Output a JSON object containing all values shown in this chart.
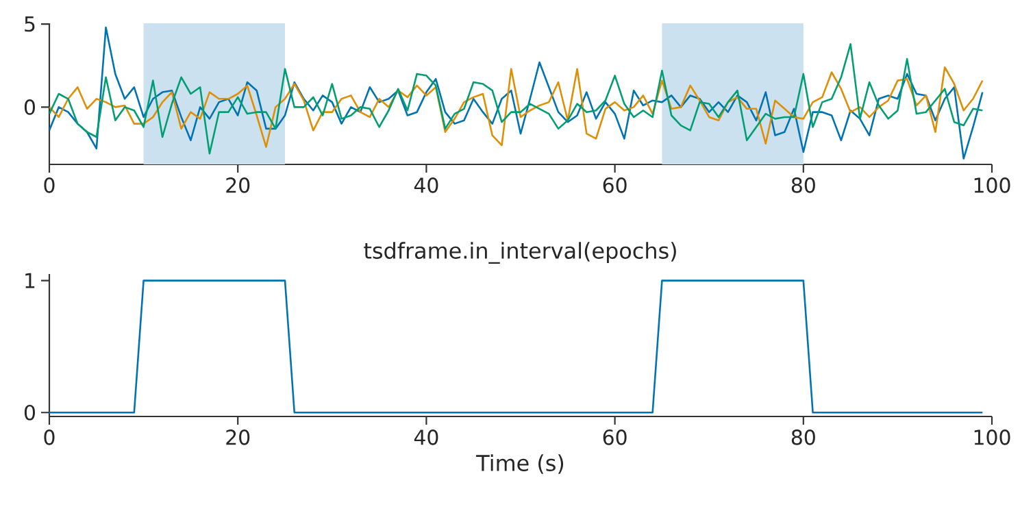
{
  "chart_data": [
    {
      "type": "line",
      "x": [
        0,
        1,
        2,
        3,
        4,
        5,
        6,
        7,
        8,
        9,
        10,
        11,
        12,
        13,
        14,
        15,
        16,
        17,
        18,
        19,
        20,
        21,
        22,
        23,
        24,
        25,
        26,
        27,
        28,
        29,
        30,
        31,
        32,
        33,
        34,
        35,
        36,
        37,
        38,
        39,
        40,
        41,
        42,
        43,
        44,
        45,
        46,
        47,
        48,
        49,
        50,
        51,
        52,
        53,
        54,
        55,
        56,
        57,
        58,
        59,
        60,
        61,
        62,
        63,
        64,
        65,
        66,
        67,
        68,
        69,
        70,
        71,
        72,
        73,
        74,
        75,
        76,
        77,
        78,
        79,
        80,
        81,
        82,
        83,
        84,
        85,
        86,
        87,
        88,
        89,
        90,
        91,
        92,
        93,
        94,
        95,
        96,
        97,
        98,
        99
      ],
      "series": [
        {
          "color": "#0173b2",
          "values": [
            -1.4,
            0,
            -0.3,
            -1,
            -1.5,
            -2.5,
            4.8,
            2,
            0.5,
            1.2,
            -0.6,
            0.5,
            0.9,
            1,
            -0.6,
            -2,
            0,
            -0.7,
            0.3,
            0.5,
            -0.5,
            1.5,
            1,
            -1.3,
            -1.3,
            -0.5,
            1.5,
            0.5,
            -0.2,
            0.7,
            0.3,
            -1,
            0,
            -0.3,
            1.2,
            0.3,
            0.5,
            1,
            -0.5,
            -0.3,
            0.9,
            1.7,
            -0.3,
            -1,
            -0.8,
            0.5,
            -0.3,
            -1,
            0.5,
            1,
            -1.6,
            0.5,
            2.7,
            1.2,
            -0.3,
            -0.9,
            -0.5,
            0.9,
            -0.7,
            0.3,
            -0.4,
            -1.9,
            1,
            0.1,
            0.4,
            0.3,
            0.7,
            0,
            0.7,
            0.5,
            -0.3,
            0.3,
            -0.3,
            0.7,
            0.3,
            -0.8,
            0.9,
            -1.7,
            -1.5,
            -0.1,
            -2.7,
            -0.3,
            -0.3,
            -0.5,
            -2,
            -0.2,
            -0.7,
            -1.7,
            0.5,
            0.7,
            0.5,
            2,
            0.8,
            0.7,
            -0.8,
            0.5,
            1.2,
            -3.1,
            -1.2,
            0.9
          ]
        },
        {
          "color": "#de8f05",
          "values": [
            0,
            -0.6,
            0.5,
            1.2,
            -0.1,
            0.5,
            0.3,
            0,
            0.1,
            -1,
            -1,
            -0.6,
            0.3,
            0.9,
            -1.3,
            -0.3,
            -0.7,
            0.9,
            0.5,
            0.5,
            0.8,
            1.3,
            -0.5,
            -2.4,
            0,
            0.5,
            1.4,
            0.4,
            -1.4,
            -0.3,
            -0.3,
            0.5,
            0.7,
            -0.3,
            -0.6,
            0.5,
            0,
            1,
            0.6,
            1.3,
            0.7,
            1.2,
            -1.5,
            -0.7,
            0.3,
            0.6,
            0.8,
            -1.7,
            -2.3,
            2.3,
            -0.6,
            -0.2,
            0.1,
            0.3,
            1.5,
            -0.8,
            2.3,
            -1.6,
            -1.9,
            -0.1,
            0.3,
            -0.2,
            0,
            0.7,
            -0.4,
            1.6,
            -0.1,
            0,
            1.3,
            0.4,
            -0.6,
            -0.8,
            0.3,
            0.6,
            -0.1,
            -0.1,
            -2.2,
            0.4,
            -0.1,
            -0.6,
            -0.7,
            0.3,
            0.6,
            2.1,
            1.1,
            -0.3,
            0,
            -0.6,
            0,
            0.4,
            1.6,
            1.7,
            0.1,
            0.7,
            -1.5,
            2.4,
            1.4,
            -0.2,
            0.5,
            1.6
          ]
        },
        {
          "color": "#029e73",
          "values": [
            -0.4,
            0.8,
            0.5,
            -1,
            -1.5,
            -1.8,
            1.8,
            -0.8,
            0,
            -0.2,
            -1.2,
            1.6,
            -1.8,
            0.2,
            1.8,
            0.8,
            1.2,
            -2.8,
            -0.3,
            -0.3,
            0.6,
            -0.4,
            -0.3,
            -0.3,
            -1.3,
            2.3,
            0,
            0,
            0.6,
            -0.5,
            1.4,
            -0.7,
            -0.5,
            0,
            -0.1,
            -1.2,
            -0.2,
            1.1,
            -0.2,
            2,
            1.9,
            1.3,
            -1.3,
            -0.4,
            -0.1,
            1.5,
            1.4,
            1,
            -0.9,
            -0.3,
            -0.3,
            0.2,
            -0.1,
            -0.4,
            -1.3,
            -0.8,
            0.2,
            -0.3,
            -0.2,
            0.4,
            1.9,
            0.2,
            -0.6,
            -0.2,
            -0.6,
            2.2,
            -0.5,
            -1.1,
            -1.4,
            0.3,
            0.2,
            -0.6,
            0.3,
            1,
            -2,
            -1.2,
            -0.4,
            -0.7,
            -0.6,
            -0.6,
            2,
            -1.2,
            0.3,
            0.5,
            1.8,
            3.8,
            -0.7,
            1.5,
            0.1,
            -0.7,
            -0.2,
            2.9,
            -0.4,
            -0.3,
            0.4,
            1.1,
            -0.9,
            -1.1,
            -0.1,
            -0.2
          ]
        }
      ],
      "xlim": [
        0,
        100
      ],
      "xticks": [
        0,
        20,
        40,
        60,
        80,
        100
      ],
      "ylim": [
        -3.45,
        5.05
      ],
      "yticks": [
        0,
        5
      ],
      "bands": [
        {
          "axis": "x",
          "from": 10,
          "to": 25,
          "color": "#cce1ef"
        },
        {
          "axis": "x",
          "from": 65,
          "to": 80,
          "color": "#cce1ef"
        }
      ]
    },
    {
      "type": "line",
      "title": "tsdframe.in_interval(epochs)",
      "xlabel": "Time (s)",
      "x": [
        0,
        9,
        10,
        25,
        26,
        64,
        65,
        80,
        81,
        99
      ],
      "series": [
        {
          "color": "#0173b2",
          "values": [
            0,
            0,
            1,
            1,
            0,
            0,
            1,
            1,
            0,
            0
          ]
        }
      ],
      "xlim": [
        0,
        100
      ],
      "xticks": [
        0,
        20,
        40,
        60,
        80,
        100
      ],
      "ylim": [
        -0.03,
        1.05
      ],
      "yticks": [
        0,
        1
      ]
    }
  ]
}
